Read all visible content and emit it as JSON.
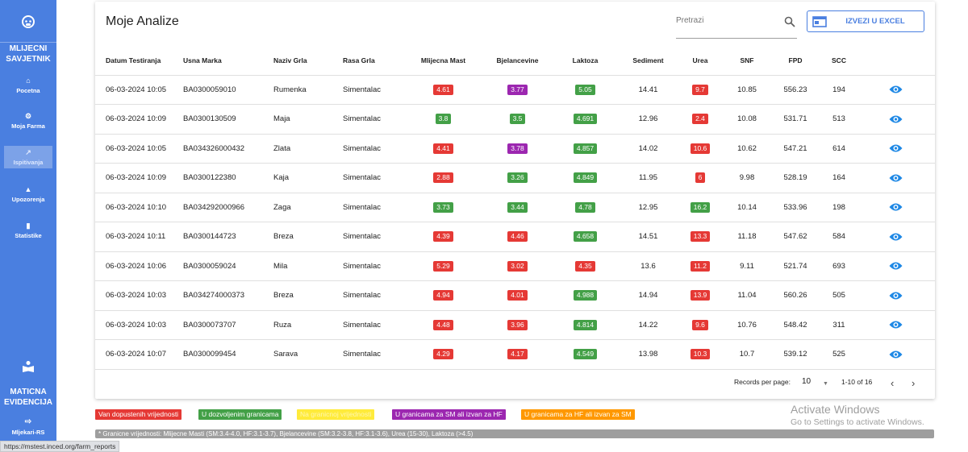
{
  "sidebar": {
    "brand_top": "MLIJECNI SAVJETNIK",
    "brand_bottom": "MATICNA EVIDENCIJA",
    "items": [
      {
        "label": "Pocetna",
        "icon": "home-icon"
      },
      {
        "label": "Moja Farma",
        "icon": "tractor-icon"
      },
      {
        "label": "Ispitivanja",
        "icon": "chart-line-icon",
        "active": true
      },
      {
        "label": "Upozorenja",
        "icon": "bell-icon"
      },
      {
        "label": "Statistike",
        "icon": "bar-chart-icon"
      }
    ],
    "logout_label": "Mljekari-RS",
    "accent_color": "#4a7fe0"
  },
  "header": {
    "title": "Moje Analize",
    "search_placeholder": "Pretrazi",
    "export_label": "IZVEZI U EXCEL"
  },
  "table": {
    "columns": [
      "Datum Testiranja",
      "Usna Marka",
      "Naziv Grla",
      "Rasa Grla",
      "Mlijecna Mast",
      "Bjelancevine",
      "Laktoza",
      "Sediment",
      "Urea",
      "SNF",
      "FPD",
      "SCC"
    ],
    "rows": [
      {
        "datum": "06-03-2024 10:05",
        "usna": "BA0300059010",
        "naziv": "Rumenka",
        "rasa": "Simentalac",
        "mast": "4.61",
        "mast_s": "red",
        "bjel": "3.77",
        "bjel_s": "purple",
        "lak": "5.05",
        "lak_s": "green",
        "sed": "14.41",
        "urea": "9.7",
        "urea_s": "red",
        "snf": "10.85",
        "fpd": "556.23",
        "scc": "194"
      },
      {
        "datum": "06-03-2024 10:09",
        "usna": "BA0300130509",
        "naziv": "Maja",
        "rasa": "Simentalac",
        "mast": "3.8",
        "mast_s": "green",
        "bjel": "3.5",
        "bjel_s": "green",
        "lak": "4.691",
        "lak_s": "green",
        "sed": "12.96",
        "urea": "2.4",
        "urea_s": "red",
        "snf": "10.08",
        "fpd": "531.71",
        "scc": "513"
      },
      {
        "datum": "06-03-2024 10:05",
        "usna": "BA034326000432",
        "naziv": "Zlata",
        "rasa": "Simentalac",
        "mast": "4.41",
        "mast_s": "red",
        "bjel": "3.78",
        "bjel_s": "purple",
        "lak": "4.857",
        "lak_s": "green",
        "sed": "14.02",
        "urea": "10.6",
        "urea_s": "red",
        "snf": "10.62",
        "fpd": "547.21",
        "scc": "614"
      },
      {
        "datum": "06-03-2024 10:09",
        "usna": "BA0300122380",
        "naziv": "Kaja",
        "rasa": "Simentalac",
        "mast": "2.88",
        "mast_s": "red",
        "bjel": "3.26",
        "bjel_s": "green",
        "lak": "4.849",
        "lak_s": "green",
        "sed": "11.95",
        "urea": "6",
        "urea_s": "red",
        "snf": "9.98",
        "fpd": "528.19",
        "scc": "164"
      },
      {
        "datum": "06-03-2024 10:10",
        "usna": "BA034292000966",
        "naziv": "Zaga",
        "rasa": "Simentalac",
        "mast": "3.73",
        "mast_s": "green",
        "bjel": "3.44",
        "bjel_s": "green",
        "lak": "4.78",
        "lak_s": "green",
        "sed": "12.95",
        "urea": "16.2",
        "urea_s": "green",
        "snf": "10.14",
        "fpd": "533.96",
        "scc": "198"
      },
      {
        "datum": "06-03-2024 10:11",
        "usna": "BA0300144723",
        "naziv": "Breza",
        "rasa": "Simentalac",
        "mast": "4.39",
        "mast_s": "red",
        "bjel": "4.46",
        "bjel_s": "red",
        "lak": "4.658",
        "lak_s": "green",
        "sed": "14.51",
        "urea": "13.3",
        "urea_s": "red",
        "snf": "11.18",
        "fpd": "547.62",
        "scc": "584"
      },
      {
        "datum": "06-03-2024 10:06",
        "usna": "BA0300059024",
        "naziv": "Mila",
        "rasa": "Simentalac",
        "mast": "5.29",
        "mast_s": "red",
        "bjel": "3.02",
        "bjel_s": "red",
        "lak": "4.35",
        "lak_s": "red",
        "sed": "13.6",
        "urea": "11.2",
        "urea_s": "red",
        "snf": "9.11",
        "fpd": "521.74",
        "scc": "693"
      },
      {
        "datum": "06-03-2024 10:03",
        "usna": "BA034274000373",
        "naziv": "Breza",
        "rasa": "Simentalac",
        "mast": "4.94",
        "mast_s": "red",
        "bjel": "4.01",
        "bjel_s": "red",
        "lak": "4.988",
        "lak_s": "green",
        "sed": "14.94",
        "urea": "13.9",
        "urea_s": "red",
        "snf": "11.04",
        "fpd": "560.26",
        "scc": "505"
      },
      {
        "datum": "06-03-2024 10:03",
        "usna": "BA0300073707",
        "naziv": "Ruza",
        "rasa": "Simentalac",
        "mast": "4.48",
        "mast_s": "red",
        "bjel": "3.96",
        "bjel_s": "red",
        "lak": "4.814",
        "lak_s": "green",
        "sed": "14.22",
        "urea": "9.6",
        "urea_s": "red",
        "snf": "10.76",
        "fpd": "548.42",
        "scc": "311"
      },
      {
        "datum": "06-03-2024 10:07",
        "usna": "BA0300099454",
        "naziv": "Sarava",
        "rasa": "Simentalac",
        "mast": "4.29",
        "mast_s": "red",
        "bjel": "4.17",
        "bjel_s": "red",
        "lak": "4.549",
        "lak_s": "green",
        "sed": "13.98",
        "urea": "10.3",
        "urea_s": "red",
        "snf": "10.7",
        "fpd": "539.12",
        "scc": "525"
      }
    ]
  },
  "pagination": {
    "records_label": "Records per page:",
    "per_page": "10",
    "range": "1-10 of 16"
  },
  "legend": [
    {
      "label": "Van dopustenih vrijednosti",
      "color": "#e53935"
    },
    {
      "label": "U dozvoljenim granicama",
      "color": "#43a047"
    },
    {
      "label": "Na granicnoj vrijednosti",
      "color": "#ffeb3b"
    },
    {
      "label": "U granicama za SM ali izvan za HF",
      "color": "#9c27b0"
    },
    {
      "label": "U granicama za HF ali izvan za SM",
      "color": "#ff9800"
    }
  ],
  "footnote": "* Granicne vrijednosti: Mlijecne Masti (SM:3.4-4.0, HF:3.1-3.7), Bjelancevine (SM:3.2-3.8, HF:3.1-3.6), Urea (15-30), Laktoza (>4.5)",
  "status_url": "https://mstest.inced.org/farm_reports",
  "watermark": {
    "line1": "Activate Windows",
    "line2": "Go to Settings to activate Windows."
  },
  "colors": {
    "red": "#e53935",
    "green": "#43a047",
    "purple": "#9c27b0",
    "accent": "#4a7fe0"
  }
}
